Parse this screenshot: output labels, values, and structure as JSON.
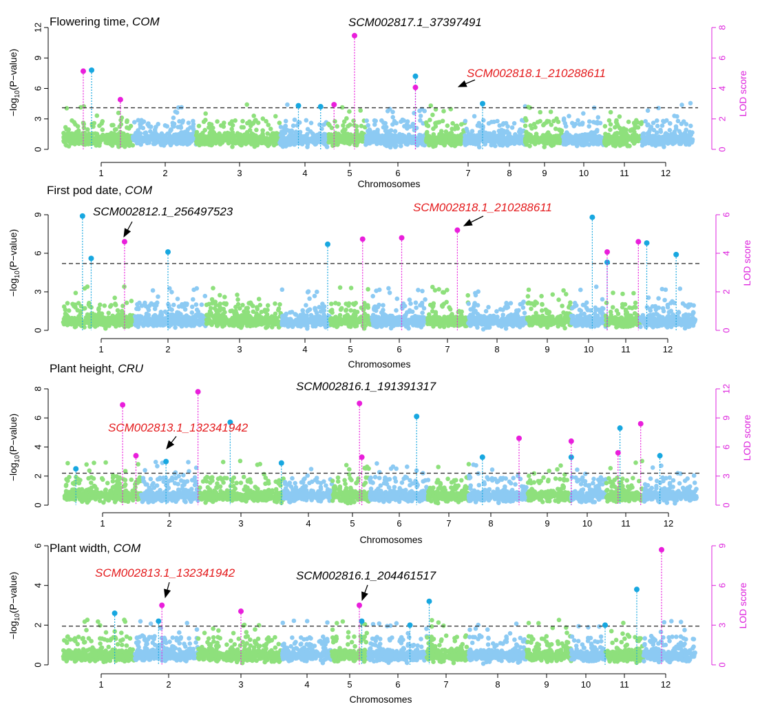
{
  "colors": {
    "green": "#8ee07c",
    "blue": "#8ccaf3",
    "cyan_hit": "#17a7e0",
    "magenta_hit": "#e91edb",
    "highlight_red": "#e41a1c",
    "axis": "#000000",
    "lod_axis": "#dd22dd",
    "threshold": "#333333"
  },
  "chart_data": [
    {
      "type": "scatter",
      "panel_id": "flowering",
      "title_main": "Flowering time, ",
      "title_pop": "COM",
      "ylabel_prefix": "−log",
      "ylabel_sub": "10",
      "ylabel_suffix": "(P−value)",
      "xlabel": "Chromosomes",
      "y2label": "LOD score",
      "ylim": [
        0,
        12
      ],
      "yticks": [
        "0",
        "3",
        "6",
        "9",
        "12"
      ],
      "y2lim": [
        0,
        8
      ],
      "y2ticks": [
        "0",
        "2",
        "4",
        "6",
        "8"
      ],
      "threshold": 4.1,
      "x_ticks": [
        "1",
        "2",
        "3",
        "4",
        "5",
        "6",
        "7",
        "8",
        "9",
        "10",
        "11",
        "12"
      ],
      "chromosome_span": [
        0.7,
        1.6,
        2.65,
        3.6,
        4.25,
        5.15,
        6.2,
        6.85,
        7.95,
        8.6,
        9.25,
        10.0,
        10.6
      ],
      "snp_cyan": [
        {
          "x": 0.85,
          "y": 7.8
        },
        {
          "x": 3.9,
          "y": 4.3
        },
        {
          "x": 4.35,
          "y": 4.2
        },
        {
          "x": 6.25,
          "y": 7.2
        },
        {
          "x": 7.35,
          "y": 4.5
        }
      ],
      "lod_magenta": [
        {
          "x": 0.72,
          "y": 7.7
        },
        {
          "x": 1.3,
          "y": 4.9
        },
        {
          "x": 4.65,
          "y": 4.4
        },
        {
          "x": 5.1,
          "y": 11.2
        },
        {
          "x": 6.25,
          "y": 6.1
        }
      ],
      "annotations": [
        {
          "text": "SCM002817.1_37397491",
          "color": "black"
        },
        {
          "text": "SCM002818.1_210288611",
          "color": "red"
        }
      ]
    },
    {
      "type": "scatter",
      "panel_id": "firstpod",
      "title_main": "First pod date, ",
      "title_pop": "COM",
      "ylabel_prefix": "−log",
      "ylabel_sub": "10",
      "ylabel_suffix": "(P−value)",
      "xlabel": "Chromosomes",
      "y2label": "LOD score",
      "ylim": [
        0,
        9
      ],
      "yticks": [
        "0",
        "3",
        "6",
        "9"
      ],
      "y2lim": [
        0,
        6
      ],
      "y2ticks": [
        "0",
        "2",
        "4",
        "6"
      ],
      "threshold": 5.2,
      "x_ticks": [
        "1",
        "2",
        "3",
        "4",
        "5",
        "6",
        "7",
        "8",
        "9",
        "10",
        "11",
        "12"
      ],
      "snp_cyan": [
        {
          "x": 0.72,
          "y": 8.9
        },
        {
          "x": 0.85,
          "y": 5.6
        },
        {
          "x": 2.0,
          "y": 6.1
        },
        {
          "x": 4.5,
          "y": 6.7
        },
        {
          "x": 10.1,
          "y": 8.8
        },
        {
          "x": 10.5,
          "y": 5.3
        },
        {
          "x": 11.5,
          "y": 6.8
        },
        {
          "x": 12.2,
          "y": 5.9
        }
      ],
      "lod_magenta": [
        {
          "x": 1.35,
          "y": 6.9
        },
        {
          "x": 5.25,
          "y": 7.1
        },
        {
          "x": 6.05,
          "y": 7.2
        },
        {
          "x": 7.2,
          "y": 7.8
        },
        {
          "x": 10.5,
          "y": 6.1
        },
        {
          "x": 11.3,
          "y": 6.9
        }
      ],
      "annotations": [
        {
          "text": "SCM002812.1_256497523",
          "color": "black"
        },
        {
          "text": "SCM002818.1_210288611",
          "color": "red"
        }
      ]
    },
    {
      "type": "scatter",
      "panel_id": "height",
      "title_main": "Plant height, ",
      "title_pop": "CRU",
      "ylabel_prefix": "−log",
      "ylabel_sub": "10",
      "ylabel_suffix": "(P−value)",
      "xlabel": "Chromosomes",
      "y2label": "LOD score",
      "ylim": [
        0,
        8
      ],
      "yticks": [
        "0",
        "2",
        "4",
        "6",
        "8"
      ],
      "y2lim": [
        0,
        12
      ],
      "y2ticks": [
        "0",
        "3",
        "6",
        "9",
        "12"
      ],
      "threshold": 2.2,
      "x_ticks": [
        "1",
        "2",
        "3",
        "4",
        "5",
        "6",
        "7",
        "8",
        "9",
        "10",
        "11",
        "12"
      ],
      "snp_cyan": [
        {
          "x": 0.6,
          "y": 2.5
        },
        {
          "x": 1.95,
          "y": 3.0
        },
        {
          "x": 2.85,
          "y": 5.7
        },
        {
          "x": 3.6,
          "y": 2.9
        },
        {
          "x": 6.35,
          "y": 6.1
        },
        {
          "x": 7.8,
          "y": 3.3
        },
        {
          "x": 9.6,
          "y": 3.3
        },
        {
          "x": 10.85,
          "y": 5.3
        },
        {
          "x": 11.8,
          "y": 3.4
        }
      ],
      "lod_magenta": [
        {
          "x": 1.3,
          "y": 6.9
        },
        {
          "x": 1.5,
          "y": 3.4
        },
        {
          "x": 2.4,
          "y": 7.8
        },
        {
          "x": 5.15,
          "y": 7.0
        },
        {
          "x": 5.2,
          "y": 3.3
        },
        {
          "x": 8.5,
          "y": 4.6
        },
        {
          "x": 9.6,
          "y": 4.4
        },
        {
          "x": 10.8,
          "y": 3.6
        },
        {
          "x": 11.35,
          "y": 5.6
        }
      ],
      "annotations": [
        {
          "text": "SCM002816.1_191391317",
          "color": "black"
        },
        {
          "text": "SCM002813.1_132341942",
          "color": "red"
        }
      ]
    },
    {
      "type": "scatter",
      "panel_id": "width",
      "title_main": "Plant width, ",
      "title_pop": "COM",
      "ylabel_prefix": "−log",
      "ylabel_sub": "10",
      "ylabel_suffix": "(P−value)",
      "xlabel": "Chromosomes",
      "y2label": "LOD score",
      "ylim": [
        0,
        6
      ],
      "yticks": [
        "0",
        "2",
        "4",
        "6"
      ],
      "y2lim": [
        0,
        9
      ],
      "y2ticks": [
        "0",
        "3",
        "6",
        "9"
      ],
      "threshold": 1.95,
      "x_ticks": [
        "1",
        "2",
        "3",
        "4",
        "5",
        "6",
        "7",
        "8",
        "9",
        "10",
        "11",
        "12"
      ],
      "snp_cyan": [
        {
          "x": 1.2,
          "y": 2.6
        },
        {
          "x": 1.85,
          "y": 2.2
        },
        {
          "x": 5.25,
          "y": 2.2
        },
        {
          "x": 6.25,
          "y": 2.0
        },
        {
          "x": 6.65,
          "y": 3.2
        },
        {
          "x": 10.5,
          "y": 2.0
        },
        {
          "x": 11.3,
          "y": 3.8
        }
      ],
      "lod_magenta": [
        {
          "x": 1.9,
          "y": 3.0
        },
        {
          "x": 3.0,
          "y": 2.7
        },
        {
          "x": 5.2,
          "y": 3.0
        },
        {
          "x": 11.9,
          "y": 5.8
        }
      ],
      "annotations": [
        {
          "text": "SCM002813.1_132341942",
          "color": "red"
        },
        {
          "text": "SCM002816.1_204461517",
          "color": "black"
        }
      ]
    }
  ]
}
